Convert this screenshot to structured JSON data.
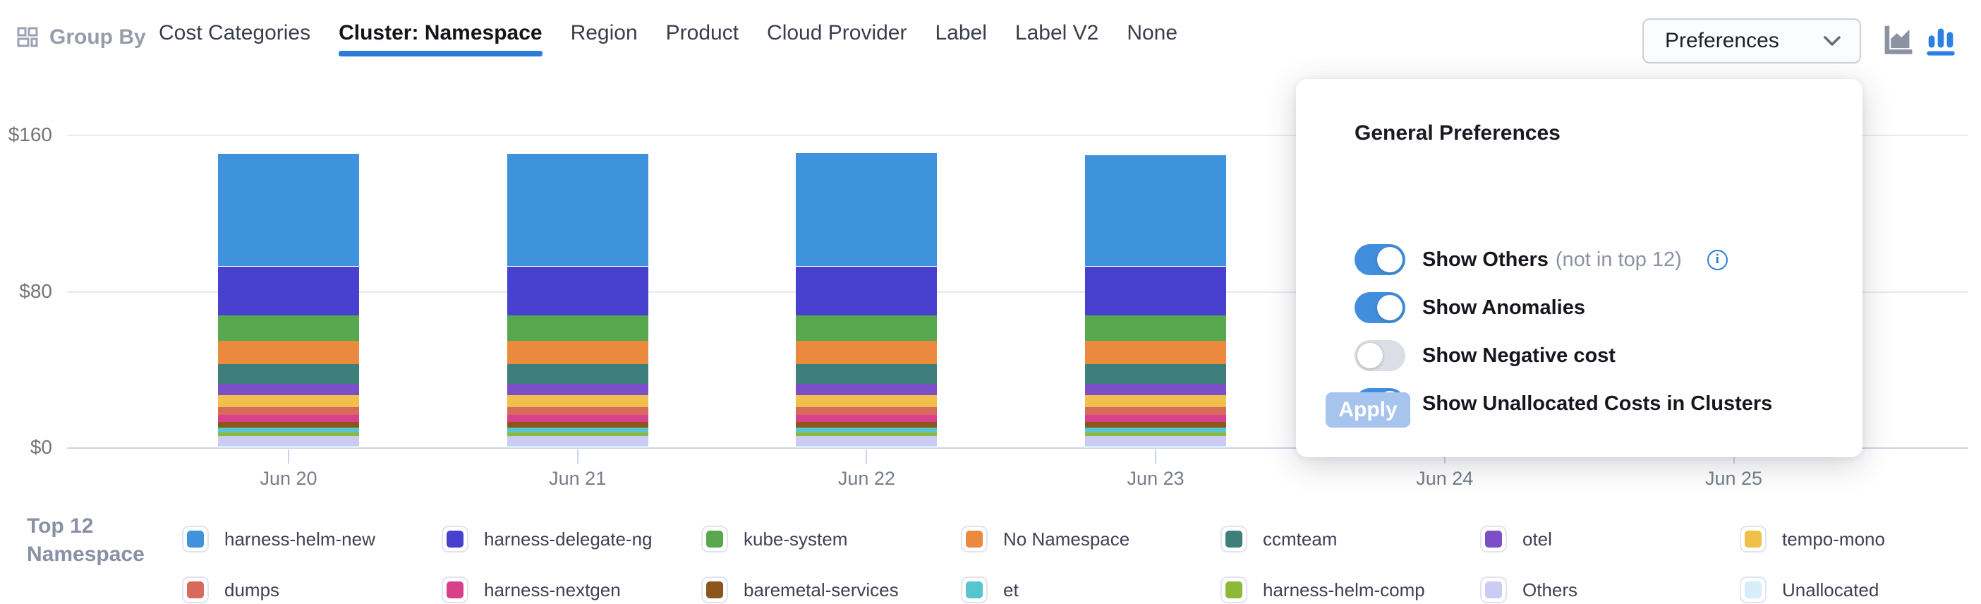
{
  "header": {
    "group_by_label": "Group By",
    "tabs": [
      {
        "label": "Cost Categories",
        "active": false
      },
      {
        "label": "Cluster: Namespace",
        "active": true
      },
      {
        "label": "Region",
        "active": false
      },
      {
        "label": "Product",
        "active": false
      },
      {
        "label": "Cloud Provider",
        "active": false
      },
      {
        "label": "Label",
        "active": false
      },
      {
        "label": "Label V2",
        "active": false
      },
      {
        "label": "None",
        "active": false
      }
    ],
    "preferences_button": "Preferences",
    "chart_type_icons": [
      "area-chart",
      "bar-chart"
    ],
    "active_chart_type": "bar-chart"
  },
  "preferences_panel": {
    "title": "General Preferences",
    "toggles": [
      {
        "label": "Show Others",
        "suffix": "(not in top 12)",
        "info": true,
        "on": true
      },
      {
        "label": "Show Anomalies",
        "suffix": "",
        "info": false,
        "on": true
      },
      {
        "label": "Show Negative cost",
        "suffix": "",
        "info": false,
        "on": false
      },
      {
        "label": "Show Unallocated Costs in Clusters",
        "suffix": "",
        "info": false,
        "on": true
      }
    ],
    "apply_label": "Apply"
  },
  "legend": {
    "title_lines": [
      "Top 12",
      "Namespace"
    ],
    "items": [
      {
        "label": "harness-helm-new",
        "color": "#3F93DC"
      },
      {
        "label": "dumps",
        "color": "#D8695D"
      },
      {
        "label": "harness-delegate-ng",
        "color": "#4841CF"
      },
      {
        "label": "harness-nextgen",
        "color": "#D84189"
      },
      {
        "label": "kube-system",
        "color": "#58A84F"
      },
      {
        "label": "baremetal-services",
        "color": "#8C551B"
      },
      {
        "label": "No Namespace",
        "color": "#EB8A3E"
      },
      {
        "label": "et",
        "color": "#57C5CF"
      },
      {
        "label": "ccmteam",
        "color": "#3E7F7B"
      },
      {
        "label": "harness-helm-comp",
        "color": "#8CBA38"
      },
      {
        "label": "otel",
        "color": "#7C4EC7"
      },
      {
        "label": "Others",
        "color": "#CBCBF4"
      },
      {
        "label": "tempo-mono",
        "color": "#EFC14B"
      },
      {
        "label": "Unallocated",
        "color": "#D7EDF8"
      }
    ]
  },
  "chart_data": {
    "type": "bar",
    "stacked": true,
    "title": "",
    "xlabel": "",
    "ylabel": "",
    "currency_prefix": "$",
    "categories": [
      "Jun 20",
      "Jun 21",
      "Jun 22",
      "Jun 23",
      "Jun 24",
      "Jun 25"
    ],
    "bar_days": [
      "Jun 20",
      "Jun 21",
      "Jun 22",
      "Jun 23"
    ],
    "y_ticks": [
      {
        "label": "$160",
        "value": 160
      },
      {
        "label": "$80",
        "value": 80
      },
      {
        "label": "$0",
        "value": 0
      }
    ],
    "ylim": [
      0,
      160
    ],
    "grid": true,
    "legend_position": "bottom",
    "stack_order": "first series renders at top of each bar",
    "series": [
      {
        "name": "harness-helm-new",
        "color": "#3F93DC",
        "values": [
          57.5,
          57.5,
          58,
          57
        ]
      },
      {
        "name": "harness-delegate-ng",
        "color": "#4841CF",
        "values": [
          25,
          25,
          25,
          25
        ]
      },
      {
        "name": "kube-system",
        "color": "#58A84F",
        "values": [
          13,
          13,
          13,
          13
        ]
      },
      {
        "name": "No Namespace",
        "color": "#EB8A3E",
        "values": [
          12,
          12,
          12,
          12
        ]
      },
      {
        "name": "ccmteam",
        "color": "#3E7F7B",
        "values": [
          10,
          10,
          10,
          10
        ]
      },
      {
        "name": "otel",
        "color": "#7C4EC7",
        "values": [
          6,
          6,
          6,
          6
        ]
      },
      {
        "name": "tempo-mono",
        "color": "#EFC14B",
        "values": [
          6,
          6,
          6,
          6
        ]
      },
      {
        "name": "dumps",
        "color": "#D8695D",
        "values": [
          4,
          4,
          4,
          4
        ]
      },
      {
        "name": "harness-nextgen",
        "color": "#D84189",
        "values": [
          3.5,
          3.5,
          3.5,
          3.5
        ]
      },
      {
        "name": "baremetal-services",
        "color": "#8C551B",
        "values": [
          3,
          3,
          3,
          3
        ]
      },
      {
        "name": "et",
        "color": "#57C5CF",
        "values": [
          2.5,
          2.5,
          2.5,
          2.5
        ]
      },
      {
        "name": "harness-helm-comp",
        "color": "#8CBA38",
        "values": [
          2,
          2,
          2,
          2
        ]
      },
      {
        "name": "Others",
        "color": "#CBCBF4",
        "values": [
          5,
          5,
          5,
          5
        ]
      },
      {
        "name": "Unallocated",
        "color": "#D7EDF8",
        "values": [
          1,
          1,
          1,
          1
        ]
      }
    ]
  }
}
